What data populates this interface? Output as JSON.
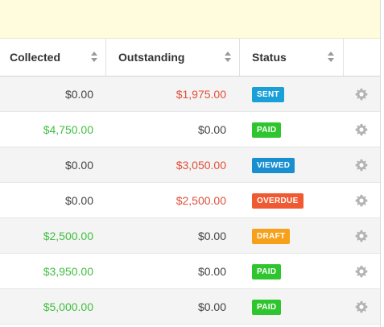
{
  "table": {
    "columns": [
      {
        "label": "Collected"
      },
      {
        "label": "Outstanding"
      },
      {
        "label": "Status"
      }
    ],
    "rows": [
      {
        "collected": "$0.00",
        "collected_color": "#444444",
        "outstanding": "$1,975.00",
        "outstanding_color": "#e0503a",
        "status": "SENT",
        "status_color": "#1aa0d8"
      },
      {
        "collected": "$4,750.00",
        "collected_color": "#3fbf3f",
        "outstanding": "$0.00",
        "outstanding_color": "#444444",
        "status": "PAID",
        "status_color": "#2fc52f"
      },
      {
        "collected": "$0.00",
        "collected_color": "#444444",
        "outstanding": "$3,050.00",
        "outstanding_color": "#e0503a",
        "status": "VIEWED",
        "status_color": "#1a8fd0"
      },
      {
        "collected": "$0.00",
        "collected_color": "#444444",
        "outstanding": "$2,500.00",
        "outstanding_color": "#e0503a",
        "status": "OVERDUE",
        "status_color": "#f05a32"
      },
      {
        "collected": "$2,500.00",
        "collected_color": "#3fbf3f",
        "outstanding": "$0.00",
        "outstanding_color": "#444444",
        "status": "DRAFT",
        "status_color": "#f7a11a"
      },
      {
        "collected": "$3,950.00",
        "collected_color": "#3fbf3f",
        "outstanding": "$0.00",
        "outstanding_color": "#444444",
        "status": "PAID",
        "status_color": "#2fc52f"
      },
      {
        "collected": "$5,000.00",
        "collected_color": "#3fbf3f",
        "outstanding": "$0.00",
        "outstanding_color": "#444444",
        "status": "PAID",
        "status_color": "#2fc52f"
      }
    ],
    "row_icon": "gear-icon"
  },
  "colors": {
    "banner": "#fefcdd",
    "row_alt": "#f4f4f4"
  }
}
